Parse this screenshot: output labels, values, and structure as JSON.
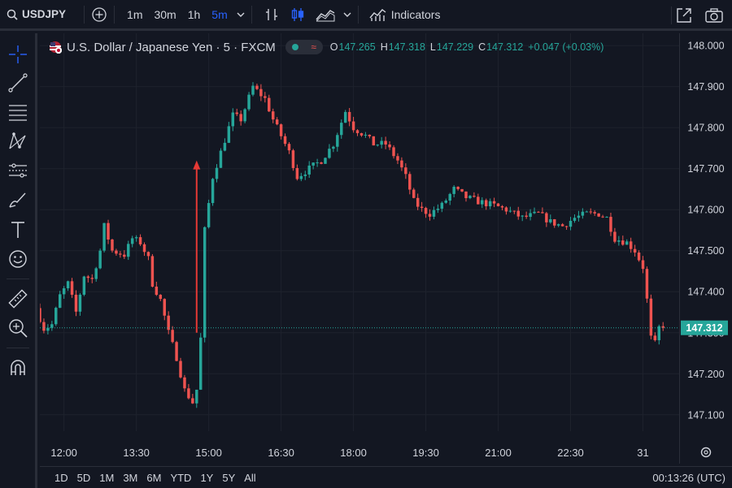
{
  "toolbar_top": {
    "symbol": "USDJPY",
    "intervals": [
      "1m",
      "30m",
      "1h",
      "5m"
    ],
    "active_interval": "5m",
    "indicators_label": "Indicators"
  },
  "legend": {
    "title": "U.S. Dollar / Japanese Yen · 5 · FXCM",
    "pill_symbol": "≈",
    "open_label": "O",
    "open": "147.265",
    "high_label": "H",
    "high": "147.318",
    "low_label": "L",
    "low": "147.229",
    "close_label": "C",
    "close": "147.312",
    "change": "+0.047 (+0.03%)"
  },
  "bottom": {
    "ranges": [
      "1D",
      "5D",
      "1M",
      "3M",
      "6M",
      "YTD",
      "1Y",
      "5Y",
      "All"
    ],
    "clock": "00:13:26 (UTC)"
  },
  "colors": {
    "up": "#26a69a",
    "down": "#ef5350",
    "background": "#131722",
    "grid": "#1e222d",
    "accent": "#2962ff",
    "arrow": "#e53935"
  },
  "icons": [
    "search-icon",
    "plus-circle-icon",
    "chevron-down-icon",
    "bar-chart-icon",
    "candle-icon",
    "area-chart-icon",
    "indicators-icon",
    "fullscreen-icon",
    "camera-icon",
    "crosshair-icon",
    "trend-line-icon",
    "fib-icon",
    "pattern-icon",
    "measure-icon",
    "brush-icon",
    "text-icon",
    "emoji-icon",
    "ruler-icon",
    "zoom-icon",
    "magnet-icon",
    "settings-icon"
  ],
  "chart_data": {
    "type": "candlestick",
    "title": "U.S. Dollar / Japanese Yen · 5 · FXCM",
    "interval_minutes": 5,
    "ylim": [
      147.06,
      148.03
    ],
    "y_ticks": [
      "148.000",
      "147.900",
      "147.800",
      "147.700",
      "147.600",
      "147.500",
      "147.400",
      "147.300",
      "147.200",
      "147.100"
    ],
    "x_ticks": [
      "12:00",
      "13:30",
      "15:00",
      "16:30",
      "18:00",
      "19:30",
      "21:00",
      "22:30",
      "31"
    ],
    "x_tick_times": [
      720,
      810,
      900,
      990,
      1080,
      1170,
      1260,
      1350,
      1440
    ],
    "x_range_minutes": [
      690,
      1485
    ],
    "last_price": "147.312",
    "last_price_value": 147.312,
    "grid": true,
    "annotations": [
      {
        "type": "arrow",
        "from": {
          "t": 885,
          "price": 147.3
        },
        "to": {
          "t": 885,
          "price": 147.72
        }
      }
    ],
    "keypoints": [
      {
        "t": 690,
        "price": 147.36
      },
      {
        "t": 700,
        "price": 147.31
      },
      {
        "t": 710,
        "price": 147.32
      },
      {
        "t": 720,
        "price": 147.39
      },
      {
        "t": 730,
        "price": 147.42
      },
      {
        "t": 740,
        "price": 147.35
      },
      {
        "t": 750,
        "price": 147.44
      },
      {
        "t": 760,
        "price": 147.43
      },
      {
        "t": 770,
        "price": 147.5
      },
      {
        "t": 775,
        "price": 147.56
      },
      {
        "t": 785,
        "price": 147.5
      },
      {
        "t": 800,
        "price": 147.49
      },
      {
        "t": 810,
        "price": 147.53
      },
      {
        "t": 820,
        "price": 147.52
      },
      {
        "t": 830,
        "price": 147.48
      },
      {
        "t": 835,
        "price": 147.42
      },
      {
        "t": 845,
        "price": 147.38
      },
      {
        "t": 855,
        "price": 147.3
      },
      {
        "t": 865,
        "price": 147.24
      },
      {
        "t": 875,
        "price": 147.16
      },
      {
        "t": 885,
        "price": 147.13
      },
      {
        "t": 893,
        "price": 147.18
      },
      {
        "t": 900,
        "price": 147.55
      },
      {
        "t": 910,
        "price": 147.68
      },
      {
        "t": 920,
        "price": 147.74
      },
      {
        "t": 935,
        "price": 147.83
      },
      {
        "t": 945,
        "price": 147.82
      },
      {
        "t": 960,
        "price": 147.9
      },
      {
        "t": 975,
        "price": 147.87
      },
      {
        "t": 985,
        "price": 147.82
      },
      {
        "t": 995,
        "price": 147.78
      },
      {
        "t": 1005,
        "price": 147.74
      },
      {
        "t": 1015,
        "price": 147.68
      },
      {
        "t": 1030,
        "price": 147.7
      },
      {
        "t": 1045,
        "price": 147.72
      },
      {
        "t": 1060,
        "price": 147.76
      },
      {
        "t": 1075,
        "price": 147.84
      },
      {
        "t": 1085,
        "price": 147.8
      },
      {
        "t": 1100,
        "price": 147.78
      },
      {
        "t": 1110,
        "price": 147.76
      },
      {
        "t": 1125,
        "price": 147.76
      },
      {
        "t": 1140,
        "price": 147.72
      },
      {
        "t": 1150,
        "price": 147.68
      },
      {
        "t": 1160,
        "price": 147.62
      },
      {
        "t": 1170,
        "price": 147.6
      },
      {
        "t": 1180,
        "price": 147.59
      },
      {
        "t": 1195,
        "price": 147.61
      },
      {
        "t": 1210,
        "price": 147.65
      },
      {
        "t": 1225,
        "price": 147.63
      },
      {
        "t": 1240,
        "price": 147.62
      },
      {
        "t": 1260,
        "price": 147.61
      },
      {
        "t": 1275,
        "price": 147.6
      },
      {
        "t": 1295,
        "price": 147.58
      },
      {
        "t": 1315,
        "price": 147.59
      },
      {
        "t": 1330,
        "price": 147.57
      },
      {
        "t": 1345,
        "price": 147.56
      },
      {
        "t": 1360,
        "price": 147.58
      },
      {
        "t": 1375,
        "price": 147.59
      },
      {
        "t": 1390,
        "price": 147.59
      },
      {
        "t": 1400,
        "price": 147.58
      },
      {
        "t": 1410,
        "price": 147.53
      },
      {
        "t": 1425,
        "price": 147.52
      },
      {
        "t": 1435,
        "price": 147.5
      },
      {
        "t": 1445,
        "price": 147.46
      },
      {
        "t": 1450,
        "price": 147.38
      },
      {
        "t": 1457,
        "price": 147.25
      },
      {
        "t": 1465,
        "price": 147.312
      }
    ]
  }
}
